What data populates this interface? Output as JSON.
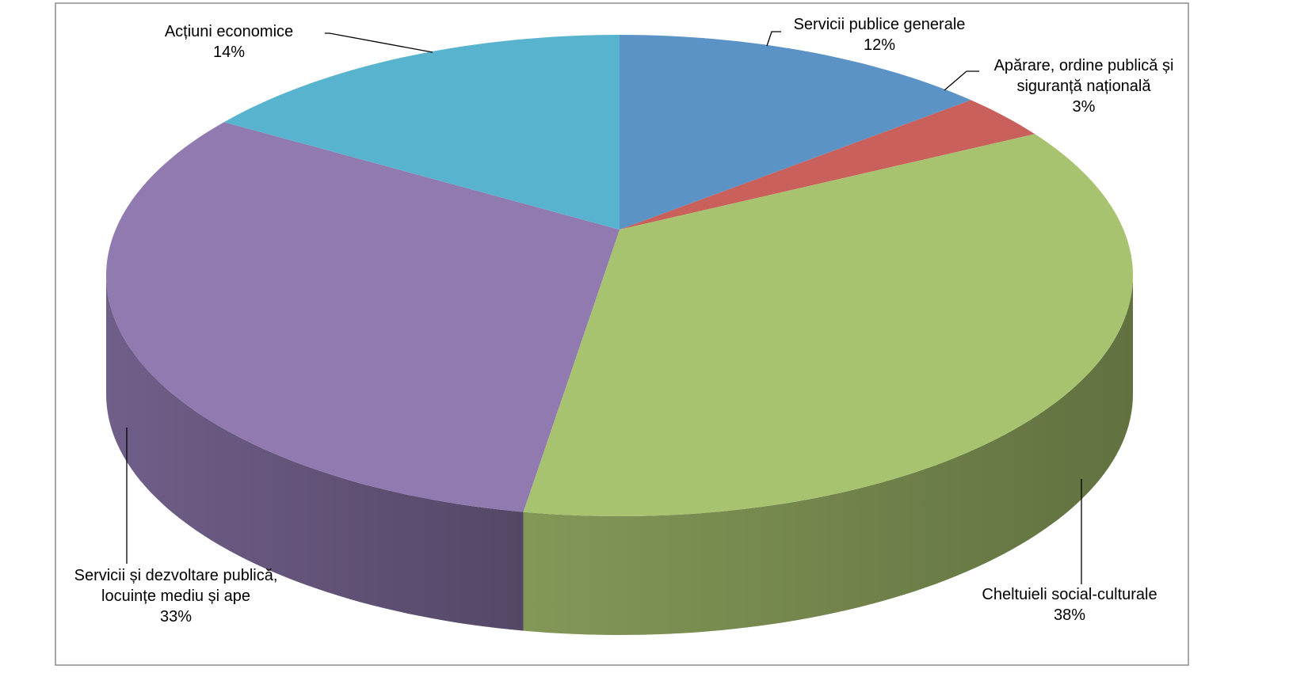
{
  "chart_data": {
    "type": "pie3d",
    "categories": [
      "Servicii publice generale",
      "Apărare, ordine publică și siguranță națională",
      "Cheltuieli social-culturale",
      "Servicii și dezvoltare publică, locuințe mediu și ape",
      "Acțiuni economice"
    ],
    "values": [
      12,
      3,
      38,
      33,
      14
    ],
    "value_labels": [
      "12%",
      "3%",
      "38%",
      "33%",
      "14%"
    ],
    "colors": [
      "#5b93c6",
      "#c9605c",
      "#a8c36f",
      "#907ab0",
      "#58b4ce"
    ]
  }
}
